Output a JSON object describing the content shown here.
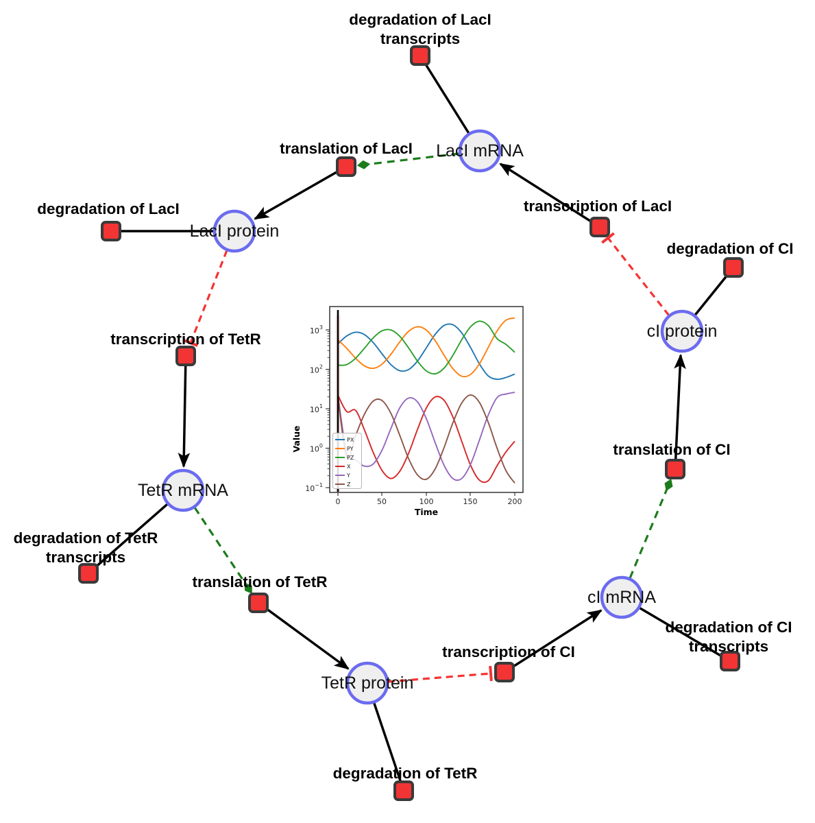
{
  "diagram": {
    "style": {
      "species_fill": "#efefef",
      "species_border": "#6b6bf0",
      "reaction_fill": "#f23434",
      "reaction_border": "#3a3a3a",
      "edge_black": "#000000",
      "edge_activation": "#1c7c1c",
      "edge_inhibition": "#f53333"
    },
    "species_nodes": [
      {
        "id": "laci-mrna",
        "label": "LacI mRNA"
      },
      {
        "id": "laci-protein",
        "label": "LacI protein"
      },
      {
        "id": "tetr-mrna",
        "label": "TetR mRNA"
      },
      {
        "id": "tetr-protein",
        "label": "TetR protein"
      },
      {
        "id": "ci-mrna",
        "label": "cI mRNA"
      },
      {
        "id": "ci-protein",
        "label": "cI protein"
      }
    ],
    "reaction_nodes": [
      {
        "id": "degradation-of-laci-transcripts",
        "label": "degradation of LacI transcripts",
        "label_lines": [
          "degradation of LacI",
          "transcripts"
        ]
      },
      {
        "id": "translation-of-laci",
        "label": "translation of LacI",
        "label_lines": [
          "translation of LacI"
        ]
      },
      {
        "id": "degradation-of-laci",
        "label": "degradation of LacI",
        "label_lines": [
          "degradation of LacI"
        ]
      },
      {
        "id": "transcription-of-laci",
        "label": "transcription of LacI",
        "label_lines": [
          "transcription of LacI"
        ]
      },
      {
        "id": "degradation-of-ci",
        "label": "degradation of CI",
        "label_lines": [
          "degradation of CI"
        ]
      },
      {
        "id": "transcription-of-tetr",
        "label": "transcription of TetR",
        "label_lines": [
          "transcription of TetR"
        ]
      },
      {
        "id": "translation-of-ci",
        "label": "translation of CI",
        "label_lines": [
          "translation of CI"
        ]
      },
      {
        "id": "degradation-of-tetr-transcripts",
        "label": "degradation of TetR transcripts",
        "label_lines": [
          "degradation of TetR",
          "transcripts"
        ]
      },
      {
        "id": "translation-of-tetr",
        "label": "translation of TetR",
        "label_lines": [
          "translation of TetR"
        ]
      },
      {
        "id": "transcription-of-ci",
        "label": "transcription of CI",
        "label_lines": [
          "transcription of CI"
        ]
      },
      {
        "id": "degradation-of-ci-transcripts",
        "label": "degradation of CI transcripts",
        "label_lines": [
          "degradation of CI",
          "transcripts"
        ]
      },
      {
        "id": "degradation-of-tetr",
        "label": "degradation of TetR",
        "label_lines": [
          "degradation of TetR"
        ]
      }
    ],
    "edges": [
      {
        "source": "LacI mRNA",
        "target": "degradation of LacI transcripts",
        "type": "reactant"
      },
      {
        "source": "translation of LacI",
        "target": "LacI protein",
        "type": "product"
      },
      {
        "source": "LacI protein",
        "target": "degradation of LacI",
        "type": "reactant"
      },
      {
        "source": "transcription of LacI",
        "target": "LacI mRNA",
        "type": "product"
      },
      {
        "source": "cI protein",
        "target": "degradation of CI",
        "type": "reactant"
      },
      {
        "source": "translation of CI",
        "target": "cI protein",
        "type": "product"
      },
      {
        "source": "transcription of TetR",
        "target": "TetR mRNA",
        "type": "product"
      },
      {
        "source": "TetR mRNA",
        "target": "degradation of TetR transcripts",
        "type": "reactant"
      },
      {
        "source": "translation of TetR",
        "target": "TetR protein",
        "type": "product"
      },
      {
        "source": "TetR protein",
        "target": "degradation of TetR",
        "type": "reactant"
      },
      {
        "source": "transcription of CI",
        "target": "cI mRNA",
        "type": "product"
      },
      {
        "source": "cI mRNA",
        "target": "degradation of CI transcripts",
        "type": "reactant"
      },
      {
        "source": "LacI mRNA",
        "target": "translation of LacI",
        "type": "modifier"
      },
      {
        "source": "TetR mRNA",
        "target": "translation of TetR",
        "type": "modifier"
      },
      {
        "source": "cI mRNA",
        "target": "translation of CI",
        "type": "modifier"
      },
      {
        "source": "LacI protein",
        "target": "transcription of TetR",
        "type": "inhibition"
      },
      {
        "source": "TetR protein",
        "target": "transcription of CI",
        "type": "inhibition"
      },
      {
        "source": "cI protein",
        "target": "transcription of LacI",
        "type": "inhibition"
      }
    ]
  },
  "chart_data": {
    "type": "line",
    "xlabel": "Time",
    "ylabel": "Value",
    "y_scale": "log",
    "xlim": [
      0,
      200
    ],
    "ylim_exponents": [
      -1,
      3
    ],
    "x_tick_labels": [
      "0",
      "50",
      "100",
      "150",
      "200"
    ],
    "y_tick_base": "10",
    "y_tick_exponents": [
      "−1",
      "0",
      "1",
      "2",
      "3"
    ],
    "legend_position": "lower left",
    "t": [
      0,
      10,
      20,
      30,
      40,
      50,
      60,
      70,
      80,
      90,
      100,
      110,
      120,
      130,
      140,
      150,
      160,
      170,
      180,
      190,
      200
    ],
    "series": [
      {
        "name": "PX",
        "color": "#1f77b4",
        "values": [
          443,
          703,
          871,
          759,
          474,
          245,
          131,
          92,
          99,
          162,
          351,
          771,
          1294,
          1352,
          840,
          357,
          138,
          68,
          56,
          62,
          76
        ]
      },
      {
        "name": "PY",
        "color": "#ff7f0e",
        "values": [
          562,
          340,
          191,
          122,
          106,
          136,
          242,
          499,
          922,
          1202,
          990,
          533,
          228,
          104,
          67,
          74,
          138,
          359,
          941,
          1762,
          2000
        ]
      },
      {
        "name": "PZ",
        "color": "#2ca02c",
        "values": [
          127,
          132,
          191,
          342,
          629,
          950,
          993,
          687,
          348,
          162,
          91,
          77,
          107,
          226,
          561,
          1197,
          1660,
          1291,
          600,
          430,
          270
        ]
      },
      {
        "name": "X",
        "color": "#d62728",
        "values": [
          22,
          8.5,
          9.1,
          2.9,
          0.77,
          0.27,
          0.17,
          0.26,
          0.75,
          3.0,
          10.5,
          19.9,
          16.4,
          6.2,
          1.5,
          0.37,
          0.155,
          0.15,
          0.36,
          0.8,
          1.5
        ]
      },
      {
        "name": "Y",
        "color": "#9467bd",
        "values": [
          22,
          0.75,
          0.5,
          0.35,
          0.4,
          0.9,
          3.2,
          10.6,
          18.7,
          14.9,
          5.6,
          1.38,
          0.37,
          0.17,
          0.17,
          0.39,
          1.6,
          6.9,
          19.2,
          23.6,
          26
        ]
      },
      {
        "name": "Z",
        "color": "#8c564b",
        "values": [
          20,
          0.59,
          2.1,
          7.3,
          15.7,
          16.1,
          7.6,
          2.1,
          0.54,
          0.21,
          0.163,
          0.3,
          1.03,
          4.4,
          14,
          22.4,
          14.5,
          4.5,
          1.0,
          0.27,
          0.13
        ]
      }
    ],
    "init_spike_x": 0
  }
}
